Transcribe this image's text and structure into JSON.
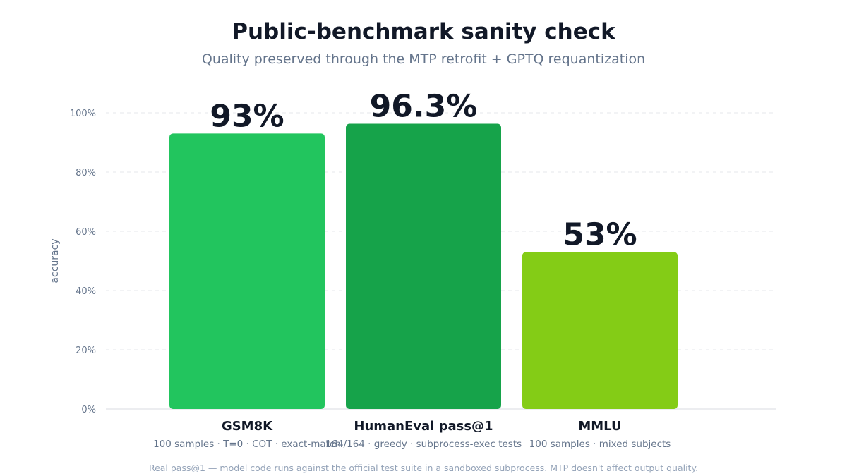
{
  "header": {
    "title": "Public-benchmark sanity check",
    "subtitle": "Quality preserved through the MTP retrofit + GPTQ requantization"
  },
  "footnote": "Real pass@1 — model code runs against the official test suite in a sandboxed subprocess. MTP doesn't affect output quality.",
  "chart_data": {
    "type": "bar",
    "title": "Public-benchmark sanity check",
    "subtitle": "Quality preserved through the MTP retrofit + GPTQ requantization",
    "xlabel": "",
    "ylabel": "accuracy",
    "ylim": [
      0,
      100
    ],
    "yticks": [
      0,
      20,
      40,
      60,
      80,
      100
    ],
    "ytick_labels": [
      "0%",
      "20%",
      "40%",
      "60%",
      "80%",
      "100%"
    ],
    "grid": true,
    "categories": [
      "GSM8K",
      "HumanEval pass@1",
      "MMLU"
    ],
    "sublabels": [
      "100 samples · T=0 · COT · exact-match",
      "164/164 · greedy · subprocess-exec tests",
      "100 samples · mixed subjects"
    ],
    "values": [
      93,
      96.3,
      53
    ],
    "value_labels": [
      "93%",
      "96.3%",
      "53%"
    ],
    "colors": [
      "#22c55e",
      "#16a34a",
      "#84cc16"
    ]
  }
}
